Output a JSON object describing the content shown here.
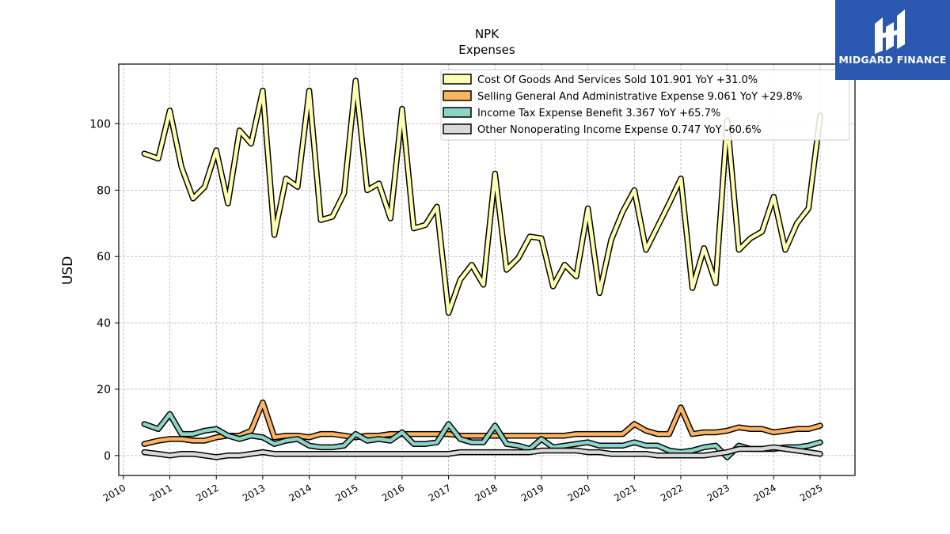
{
  "chart_data": {
    "type": "line",
    "title": "NPK",
    "subtitle": "Expenses",
    "ylabel": "USD",
    "xlabel": "",
    "xlim": [
      2009.9,
      2025.75
    ],
    "ylim": [
      -6,
      118
    ],
    "grid": true,
    "legend_position": "top-right",
    "x_ticks": [
      "2010",
      "2011",
      "2012",
      "2013",
      "2014",
      "2015",
      "2016",
      "2017",
      "2018",
      "2019",
      "2020",
      "2021",
      "2022",
      "2023",
      "2024",
      "2025"
    ],
    "y_ticks": [
      0,
      20,
      40,
      60,
      80,
      100
    ],
    "x": [
      2010.45,
      2010.75,
      2011.0,
      2011.25,
      2011.5,
      2011.75,
      2012.0,
      2012.25,
      2012.5,
      2012.75,
      2013.0,
      2013.25,
      2013.5,
      2013.75,
      2014.0,
      2014.25,
      2014.5,
      2014.75,
      2015.0,
      2015.25,
      2015.5,
      2015.75,
      2016.0,
      2016.25,
      2016.5,
      2016.75,
      2017.0,
      2017.25,
      2017.5,
      2017.75,
      2018.0,
      2018.25,
      2018.5,
      2018.75,
      2019.0,
      2019.25,
      2019.5,
      2019.75,
      2020.0,
      2020.25,
      2020.5,
      2020.75,
      2021.0,
      2021.25,
      2021.5,
      2021.75,
      2022.0,
      2022.25,
      2022.5,
      2022.75,
      2023.0,
      2023.25,
      2023.5,
      2023.75,
      2024.0,
      2024.25,
      2024.5,
      2024.75,
      2025.0
    ],
    "series": [
      {
        "name": "Cost Of Goods And Services Sold",
        "legend_label": "Cost Of Goods And Services Sold  101.901 YoY +31.0%",
        "color": "#ffffb3",
        "values": [
          91,
          89.5,
          104,
          87,
          77.5,
          81,
          92,
          76,
          98,
          94,
          110,
          66.5,
          83.5,
          81,
          110,
          71,
          72,
          79,
          113,
          80,
          82,
          71.5,
          104.5,
          68.5,
          69.5,
          75,
          43,
          53,
          57.5,
          51.5,
          85,
          56,
          59.5,
          66,
          65.5,
          51,
          57.5,
          54,
          74.5,
          49,
          65,
          73.5,
          80,
          62,
          69,
          76,
          83.5,
          50.5,
          62.5,
          52,
          101,
          62,
          65.5,
          67.5,
          78,
          62,
          70,
          74.5,
          102.5
        ]
      },
      {
        "name": "Selling General And Administrative Expense",
        "legend_label": "Selling General And Administrative Expense  9.061 YoY +29.8%",
        "color": "#fdb462",
        "values": [
          3.5,
          4.5,
          5,
          5,
          4.5,
          4.5,
          5.5,
          6,
          6,
          7.5,
          16,
          5.5,
          6,
          6,
          5.5,
          6.5,
          6.5,
          6,
          5.5,
          6,
          6,
          6.5,
          6.5,
          6.5,
          6.5,
          6.5,
          6.5,
          6,
          6,
          6,
          6,
          6,
          6,
          6,
          6,
          6,
          6,
          6.5,
          6.5,
          6.5,
          6.5,
          6.5,
          9.5,
          7.5,
          6.5,
          6.5,
          14.5,
          6.5,
          7,
          7,
          7.5,
          8.5,
          8,
          8,
          7,
          7.5,
          8,
          8,
          9
        ]
      },
      {
        "name": "Income Tax Expense Benefit",
        "legend_label": "Income Tax Expense Benefit  3.367 YoY +65.7%",
        "color": "#8dd3c7",
        "values": [
          9.5,
          8,
          12.5,
          6.5,
          6.5,
          7.5,
          8,
          6,
          5,
          6,
          5.5,
          3.5,
          4.5,
          5,
          3,
          2.5,
          2.5,
          3,
          6.5,
          4.5,
          5,
          4.5,
          7,
          3.5,
          3.5,
          4,
          9.5,
          5,
          4,
          4,
          9,
          3.5,
          3,
          2,
          5,
          2.5,
          3,
          3.5,
          4,
          3,
          3,
          3,
          4,
          3,
          3,
          1.5,
          1,
          1.5,
          2.5,
          3,
          -0.5,
          3,
          2,
          2,
          2,
          2.5,
          2.5,
          3,
          4
        ]
      },
      {
        "name": "Other Nonoperating Income Expense",
        "legend_label": "Other Nonoperating Income Expense  0.747 YoY -60.6%",
        "color": "#d9d9d9",
        "values": [
          1,
          0.5,
          0,
          0.5,
          0.5,
          0,
          -0.5,
          0,
          0,
          0.5,
          1,
          0.5,
          0.5,
          0.5,
          0.5,
          0.5,
          0.5,
          0.5,
          0.5,
          0.5,
          0.5,
          0.5,
          0.5,
          0.5,
          0.5,
          0.5,
          0.5,
          1,
          1,
          1,
          1,
          1,
          1,
          1,
          1.5,
          1.5,
          1.5,
          1.5,
          1,
          1,
          0.5,
          0.5,
          0.5,
          0.5,
          0,
          0,
          0,
          0,
          0,
          0.5,
          1,
          2,
          2,
          2,
          2.5,
          2,
          1.5,
          1,
          0.5
        ]
      }
    ]
  },
  "logo": {
    "text": "MIDGARD FINANCE",
    "background": "#2a57b0"
  }
}
